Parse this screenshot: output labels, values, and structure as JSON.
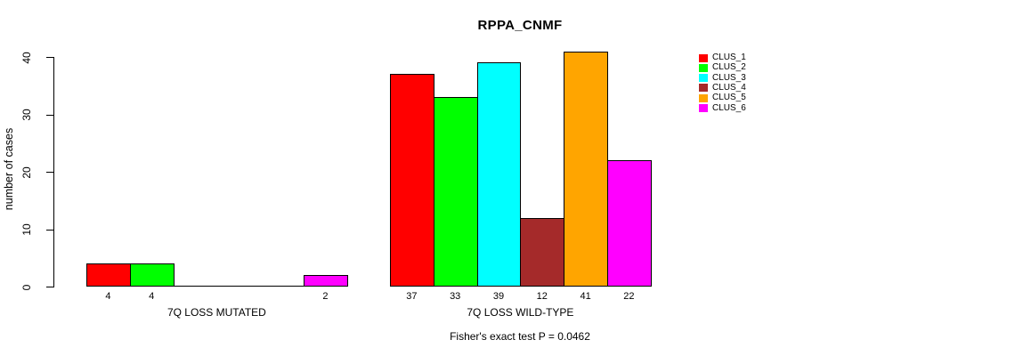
{
  "page": {
    "background_color": "#FFFFFF",
    "text_color": "#000000"
  },
  "chart_data": {
    "type": "bar",
    "title": "RPPA_CNMF",
    "xlabel": "",
    "ylabel": "number of cases",
    "ylim": [
      0,
      40
    ],
    "yticks": [
      0,
      10,
      20,
      30,
      40
    ],
    "grid": false,
    "legend_position": "right-outside",
    "axis_color": "#000000",
    "bar_border_color": "#000000",
    "zero_bars_labeled": false,
    "groups": [
      "7Q LOSS MUTATED",
      "7Q LOSS WILD-TYPE"
    ],
    "series": [
      {
        "name": "CLUS_1",
        "color": "#FF0000",
        "values": [
          4,
          37
        ]
      },
      {
        "name": "CLUS_2",
        "color": "#00FF00",
        "values": [
          4,
          33
        ]
      },
      {
        "name": "CLUS_3",
        "color": "#00FFFF",
        "values": [
          0,
          39
        ]
      },
      {
        "name": "CLUS_4",
        "color": "#A52A2A",
        "values": [
          0,
          12
        ]
      },
      {
        "name": "CLUS_5",
        "color": "#FFA500",
        "values": [
          0,
          41
        ]
      },
      {
        "name": "CLUS_6",
        "color": "#FF00FF",
        "values": [
          2,
          22
        ]
      }
    ],
    "annotation": "Fisher's exact test P = 0.0462"
  }
}
